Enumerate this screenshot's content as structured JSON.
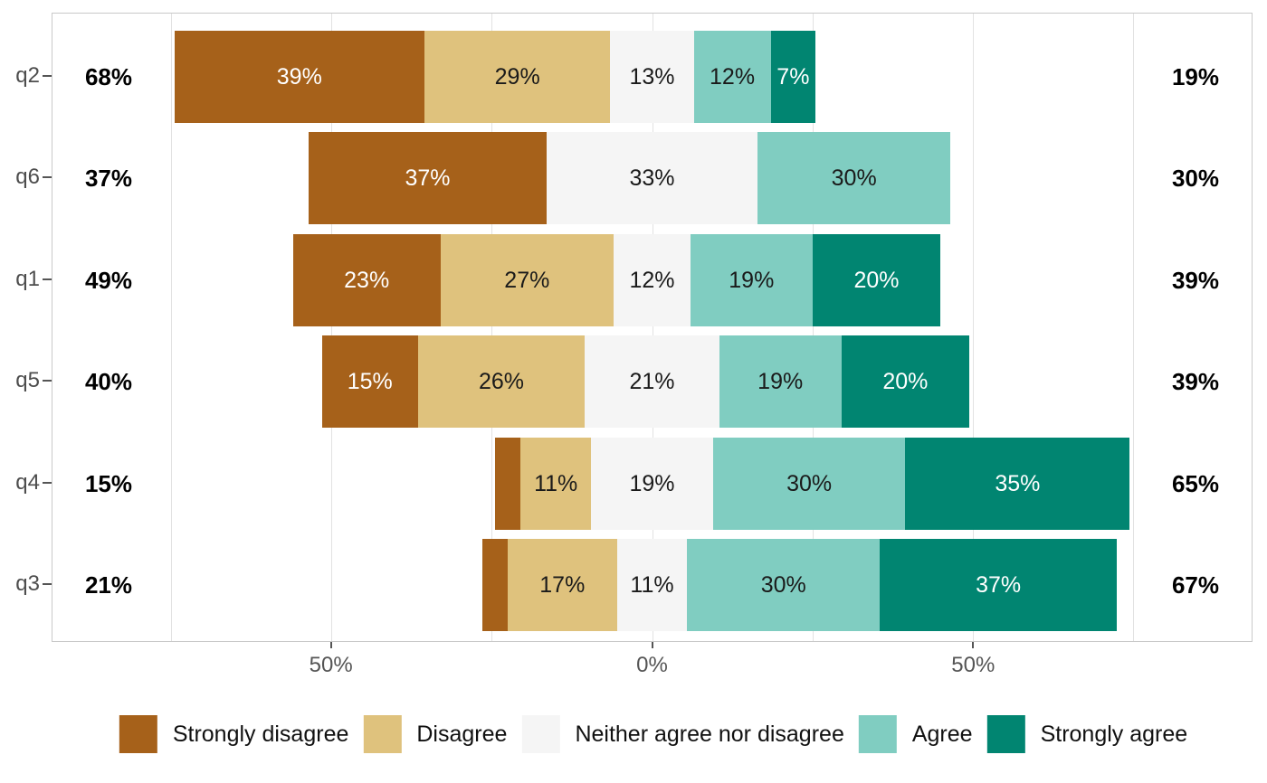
{
  "chart_data": {
    "type": "bar",
    "variant": "diverging-stacked-likert",
    "orientation": "horizontal",
    "title": "",
    "xlabel": "",
    "ylabel": "",
    "axis": {
      "range": [
        -93.5,
        93.5
      ],
      "gridlines": [
        -75,
        -50,
        -25,
        0,
        25,
        50,
        75
      ],
      "ticks": [
        {
          "value": -50,
          "label": "50%"
        },
        {
          "value": 0,
          "label": "0%"
        },
        {
          "value": 50,
          "label": "50%"
        }
      ]
    },
    "categories": [
      {
        "name": "Strongly disagree",
        "color": "#a6611a",
        "text_color": "#ffffff"
      },
      {
        "name": "Disagree",
        "color": "#dfc27d",
        "text_color": "#1a1a1a"
      },
      {
        "name": "Neither agree nor disagree",
        "color": "#f5f5f5",
        "text_color": "#1a1a1a"
      },
      {
        "name": "Agree",
        "color": "#80cdc1",
        "text_color": "#1a1a1a"
      },
      {
        "name": "Strongly agree",
        "color": "#018571",
        "text_color": "#ffffff"
      }
    ],
    "neutral_centered_on_zero": true,
    "rows": [
      {
        "question": "q2",
        "left_total": "68%",
        "right_total": "19%",
        "values": [
          39,
          29,
          13,
          12,
          7
        ],
        "labels": [
          "39%",
          "29%",
          "13%",
          "12%",
          "7%"
        ]
      },
      {
        "question": "q6",
        "left_total": "37%",
        "right_total": "30%",
        "values": [
          37,
          0,
          33,
          30,
          0
        ],
        "labels": [
          "37%",
          "",
          "33%",
          "30%",
          ""
        ]
      },
      {
        "question": "q1",
        "left_total": "49%",
        "right_total": "39%",
        "values": [
          23,
          27,
          12,
          19,
          20
        ],
        "labels": [
          "23%",
          "27%",
          "12%",
          "19%",
          "20%"
        ]
      },
      {
        "question": "q5",
        "left_total": "40%",
        "right_total": "39%",
        "values": [
          15,
          26,
          21,
          19,
          20
        ],
        "labels": [
          "15%",
          "26%",
          "21%",
          "19%",
          "20%"
        ]
      },
      {
        "question": "q4",
        "left_total": "15%",
        "right_total": "65%",
        "values": [
          4,
          11,
          19,
          30,
          35
        ],
        "labels": [
          "",
          "11%",
          "19%",
          "30%",
          "35%"
        ]
      },
      {
        "question": "q3",
        "left_total": "21%",
        "right_total": "67%",
        "values": [
          4,
          17,
          11,
          30,
          37
        ],
        "labels": [
          "",
          "17%",
          "11%",
          "30%",
          "37%"
        ]
      }
    ],
    "legend": [
      "Strongly disagree",
      "Disagree",
      "Neither agree nor disagree",
      "Agree",
      "Strongly agree"
    ],
    "legend_position": "bottom"
  },
  "style": {
    "background": "#ffffff",
    "grid_color": "#e2e2e2",
    "panel_border_color": "#c9c9c9",
    "axis_text_color": "#555555",
    "row_label_color": "#4d4d4d",
    "total_color": "#000000"
  }
}
